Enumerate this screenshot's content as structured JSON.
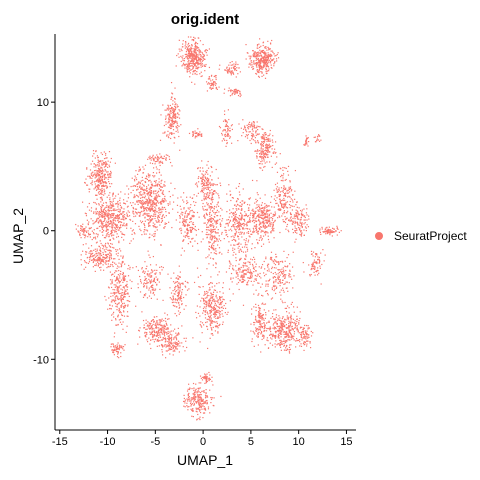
{
  "chart_data": {
    "type": "scatter",
    "title": "orig.ident",
    "xlabel": "UMAP_1",
    "ylabel": "UMAP_2",
    "xlim": [
      -15.5,
      16
    ],
    "ylim": [
      -15.5,
      15.3
    ],
    "x_ticks": [
      -15,
      -10,
      -5,
      0,
      5,
      10,
      15
    ],
    "y_ticks": [
      -10,
      0,
      10
    ],
    "x_tick_labels": [
      "-15",
      "-10",
      "-5",
      "0",
      "5",
      "10",
      "15"
    ],
    "y_tick_labels": [
      "-10",
      "0",
      "10"
    ],
    "grid": false,
    "legend_position": "right",
    "series": [
      {
        "name": "SeuratProject",
        "color": "#F8766D"
      }
    ],
    "clusters": [
      {
        "center": [
          -1.0,
          13.5
        ],
        "spread": [
          1.1,
          1.3
        ],
        "count": 360
      },
      {
        "center": [
          6.2,
          13.3
        ],
        "spread": [
          1.2,
          1.0
        ],
        "count": 320
      },
      {
        "center": [
          3.0,
          12.6
        ],
        "spread": [
          0.9,
          0.5
        ],
        "count": 60
      },
      {
        "center": [
          3.3,
          10.8
        ],
        "spread": [
          0.8,
          0.3
        ],
        "count": 40
      },
      {
        "center": [
          1.0,
          11.5
        ],
        "spread": [
          0.5,
          0.6
        ],
        "count": 50
      },
      {
        "center": [
          -3.3,
          8.8
        ],
        "spread": [
          0.7,
          1.5
        ],
        "count": 180
      },
      {
        "center": [
          2.5,
          8.0
        ],
        "spread": [
          0.5,
          1.2
        ],
        "count": 60
      },
      {
        "center": [
          5.0,
          7.8
        ],
        "spread": [
          1.1,
          0.8
        ],
        "count": 80
      },
      {
        "center": [
          -0.7,
          7.5
        ],
        "spread": [
          0.6,
          0.3
        ],
        "count": 35
      },
      {
        "center": [
          6.5,
          6.3
        ],
        "spread": [
          0.9,
          1.3
        ],
        "count": 180
      },
      {
        "center": [
          10.8,
          7.0
        ],
        "spread": [
          0.3,
          0.4
        ],
        "count": 20
      },
      {
        "center": [
          -4.5,
          5.6
        ],
        "spread": [
          1.2,
          0.4
        ],
        "count": 50
      },
      {
        "center": [
          -10.7,
          4.2
        ],
        "spread": [
          1.0,
          1.6
        ],
        "count": 270
      },
      {
        "center": [
          -5.5,
          2.3
        ],
        "spread": [
          1.8,
          2.3
        ],
        "count": 550
      },
      {
        "center": [
          -9.7,
          1.0
        ],
        "spread": [
          2.0,
          1.5
        ],
        "count": 450
      },
      {
        "center": [
          -12.3,
          0.0
        ],
        "spread": [
          0.8,
          0.5
        ],
        "count": 60
      },
      {
        "center": [
          -10.8,
          -2.0
        ],
        "spread": [
          1.5,
          1.0
        ],
        "count": 200
      },
      {
        "center": [
          -8.7,
          -4.7
        ],
        "spread": [
          1.0,
          2.5
        ],
        "count": 280
      },
      {
        "center": [
          -2.6,
          -4.8
        ],
        "spread": [
          0.7,
          1.4
        ],
        "count": 120
      },
      {
        "center": [
          0.3,
          3.6
        ],
        "spread": [
          0.8,
          1.2
        ],
        "count": 120
      },
      {
        "center": [
          1.0,
          0.6
        ],
        "spread": [
          1.0,
          3.0
        ],
        "count": 260
      },
      {
        "center": [
          -1.6,
          0.7
        ],
        "spread": [
          0.9,
          1.8
        ],
        "count": 150
      },
      {
        "center": [
          -5.5,
          -4.0
        ],
        "spread": [
          1.2,
          1.2
        ],
        "count": 120
      },
      {
        "center": [
          3.7,
          0.5
        ],
        "spread": [
          1.2,
          2.2
        ],
        "count": 260
      },
      {
        "center": [
          6.2,
          0.9
        ],
        "spread": [
          1.4,
          1.5
        ],
        "count": 300
      },
      {
        "center": [
          8.5,
          2.5
        ],
        "spread": [
          1.0,
          2.0
        ],
        "count": 160
      },
      {
        "center": [
          10.0,
          0.8
        ],
        "spread": [
          1.0,
          1.2
        ],
        "count": 130
      },
      {
        "center": [
          13.2,
          0.0
        ],
        "spread": [
          1.0,
          0.3
        ],
        "count": 70
      },
      {
        "center": [
          11.8,
          -2.5
        ],
        "spread": [
          0.8,
          1.0
        ],
        "count": 70
      },
      {
        "center": [
          4.5,
          -3.3
        ],
        "spread": [
          1.5,
          1.3
        ],
        "count": 170
      },
      {
        "center": [
          7.8,
          -3.5
        ],
        "spread": [
          1.4,
          1.6
        ],
        "count": 170
      },
      {
        "center": [
          1.0,
          -6.0
        ],
        "spread": [
          1.3,
          1.8
        ],
        "count": 280
      },
      {
        "center": [
          -4.7,
          -7.8
        ],
        "spread": [
          1.6,
          0.9
        ],
        "count": 230
      },
      {
        "center": [
          -3.2,
          -8.8
        ],
        "spread": [
          1.2,
          0.8
        ],
        "count": 110
      },
      {
        "center": [
          -9.0,
          -9.2
        ],
        "spread": [
          0.6,
          0.5
        ],
        "count": 60
      },
      {
        "center": [
          6.0,
          -7.3
        ],
        "spread": [
          0.8,
          1.5
        ],
        "count": 150
      },
      {
        "center": [
          8.6,
          -7.7
        ],
        "spread": [
          1.6,
          1.5
        ],
        "count": 330
      },
      {
        "center": [
          10.8,
          -8.2
        ],
        "spread": [
          0.5,
          0.8
        ],
        "count": 60
      },
      {
        "center": [
          -0.5,
          -13.2
        ],
        "spread": [
          1.3,
          1.1
        ],
        "count": 220
      },
      {
        "center": [
          0.4,
          -11.5
        ],
        "spread": [
          0.7,
          0.4
        ],
        "count": 40
      },
      {
        "center": [
          12.0,
          7.1
        ],
        "spread": [
          0.3,
          0.3
        ],
        "count": 15
      }
    ]
  }
}
